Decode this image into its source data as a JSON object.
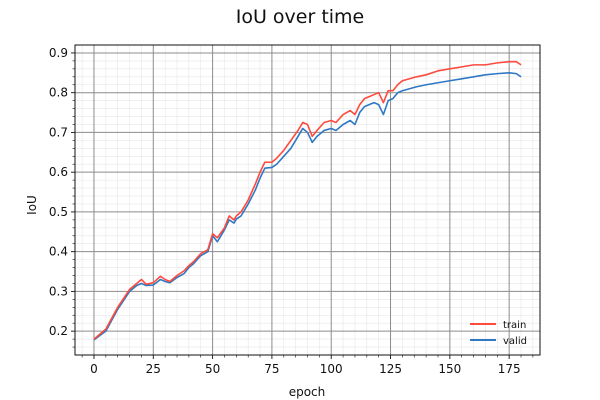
{
  "chart_data": {
    "type": "line",
    "title": "IoU over time",
    "xlabel": "epoch",
    "ylabel": "IoU",
    "xlim": [
      -8,
      188
    ],
    "ylim": [
      0.14,
      0.92
    ],
    "xticks": [
      0,
      25,
      50,
      75,
      100,
      125,
      150,
      175
    ],
    "yticks": [
      0.2,
      0.3,
      0.4,
      0.5,
      0.6,
      0.7,
      0.8,
      0.9
    ],
    "grid": {
      "major": true,
      "minor": true
    },
    "legend_position": "lower-right",
    "series": [
      {
        "name": "train",
        "color": "#ff4a3d",
        "points": [
          [
            0,
            0.18
          ],
          [
            5,
            0.205
          ],
          [
            10,
            0.26
          ],
          [
            15,
            0.305
          ],
          [
            18,
            0.32
          ],
          [
            20,
            0.33
          ],
          [
            22,
            0.318
          ],
          [
            25,
            0.322
          ],
          [
            28,
            0.338
          ],
          [
            30,
            0.33
          ],
          [
            32,
            0.325
          ],
          [
            35,
            0.34
          ],
          [
            38,
            0.352
          ],
          [
            40,
            0.365
          ],
          [
            42,
            0.375
          ],
          [
            45,
            0.395
          ],
          [
            48,
            0.405
          ],
          [
            50,
            0.445
          ],
          [
            52,
            0.435
          ],
          [
            55,
            0.46
          ],
          [
            57,
            0.49
          ],
          [
            59,
            0.48
          ],
          [
            60,
            0.49
          ],
          [
            62,
            0.5
          ],
          [
            65,
            0.53
          ],
          [
            68,
            0.57
          ],
          [
            70,
            0.6
          ],
          [
            72,
            0.625
          ],
          [
            75,
            0.625
          ],
          [
            77,
            0.635
          ],
          [
            80,
            0.655
          ],
          [
            83,
            0.68
          ],
          [
            86,
            0.705
          ],
          [
            88,
            0.725
          ],
          [
            90,
            0.72
          ],
          [
            92,
            0.69
          ],
          [
            94,
            0.705
          ],
          [
            97,
            0.725
          ],
          [
            100,
            0.73
          ],
          [
            102,
            0.725
          ],
          [
            105,
            0.745
          ],
          [
            108,
            0.755
          ],
          [
            110,
            0.745
          ],
          [
            112,
            0.77
          ],
          [
            114,
            0.785
          ],
          [
            116,
            0.79
          ],
          [
            118,
            0.795
          ],
          [
            120,
            0.8
          ],
          [
            122,
            0.775
          ],
          [
            124,
            0.805
          ],
          [
            126,
            0.805
          ],
          [
            128,
            0.82
          ],
          [
            130,
            0.83
          ],
          [
            133,
            0.835
          ],
          [
            136,
            0.84
          ],
          [
            140,
            0.845
          ],
          [
            145,
            0.855
          ],
          [
            150,
            0.86
          ],
          [
            155,
            0.865
          ],
          [
            160,
            0.87
          ],
          [
            165,
            0.87
          ],
          [
            170,
            0.875
          ],
          [
            175,
            0.878
          ],
          [
            178,
            0.878
          ],
          [
            180,
            0.87
          ]
        ]
      },
      {
        "name": "valid",
        "color": "#2f78c4",
        "points": [
          [
            0,
            0.178
          ],
          [
            5,
            0.2
          ],
          [
            10,
            0.255
          ],
          [
            15,
            0.3
          ],
          [
            18,
            0.315
          ],
          [
            20,
            0.32
          ],
          [
            22,
            0.315
          ],
          [
            25,
            0.316
          ],
          [
            28,
            0.33
          ],
          [
            30,
            0.325
          ],
          [
            32,
            0.322
          ],
          [
            35,
            0.335
          ],
          [
            38,
            0.345
          ],
          [
            40,
            0.36
          ],
          [
            42,
            0.37
          ],
          [
            45,
            0.39
          ],
          [
            48,
            0.4
          ],
          [
            50,
            0.44
          ],
          [
            52,
            0.425
          ],
          [
            55,
            0.455
          ],
          [
            57,
            0.48
          ],
          [
            59,
            0.472
          ],
          [
            60,
            0.482
          ],
          [
            62,
            0.49
          ],
          [
            65,
            0.52
          ],
          [
            68,
            0.555
          ],
          [
            70,
            0.585
          ],
          [
            72,
            0.61
          ],
          [
            75,
            0.612
          ],
          [
            77,
            0.62
          ],
          [
            80,
            0.64
          ],
          [
            83,
            0.66
          ],
          [
            86,
            0.69
          ],
          [
            88,
            0.71
          ],
          [
            90,
            0.7
          ],
          [
            92,
            0.675
          ],
          [
            94,
            0.69
          ],
          [
            97,
            0.705
          ],
          [
            100,
            0.71
          ],
          [
            102,
            0.705
          ],
          [
            105,
            0.72
          ],
          [
            108,
            0.73
          ],
          [
            110,
            0.72
          ],
          [
            112,
            0.75
          ],
          [
            114,
            0.765
          ],
          [
            116,
            0.77
          ],
          [
            118,
            0.775
          ],
          [
            120,
            0.77
          ],
          [
            122,
            0.745
          ],
          [
            124,
            0.78
          ],
          [
            126,
            0.785
          ],
          [
            128,
            0.8
          ],
          [
            130,
            0.805
          ],
          [
            133,
            0.81
          ],
          [
            136,
            0.815
          ],
          [
            140,
            0.82
          ],
          [
            145,
            0.825
          ],
          [
            150,
            0.83
          ],
          [
            155,
            0.835
          ],
          [
            160,
            0.84
          ],
          [
            165,
            0.845
          ],
          [
            170,
            0.848
          ],
          [
            175,
            0.85
          ],
          [
            178,
            0.848
          ],
          [
            180,
            0.84
          ]
        ]
      }
    ]
  }
}
